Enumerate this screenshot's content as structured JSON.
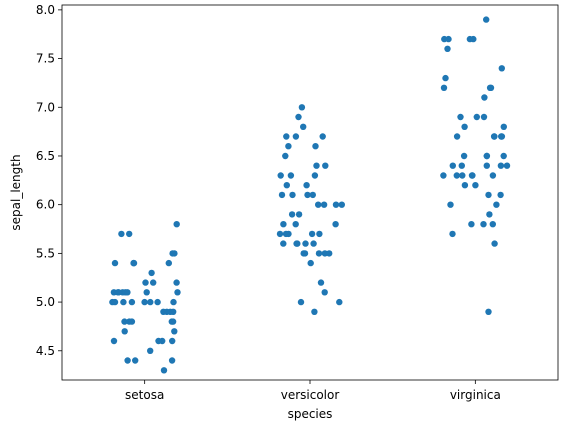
{
  "chart_data": {
    "type": "scatter",
    "subtype": "strip",
    "title": "",
    "xlabel": "species",
    "ylabel": "sepal_length",
    "categories": [
      "setosa",
      "versicolor",
      "virginica"
    ],
    "ylim": [
      4.2,
      8.05
    ],
    "yticks": [
      "4.5",
      "5.0",
      "5.5",
      "6.0",
      "6.5",
      "7.0",
      "7.5",
      "8.0"
    ],
    "grid": false,
    "legend": "none",
    "marker_color": "#1f77b4",
    "series": [
      {
        "category": "setosa",
        "values": [
          5.1,
          4.9,
          4.7,
          4.6,
          5.0,
          5.4,
          4.6,
          5.0,
          4.4,
          4.9,
          5.4,
          4.8,
          4.8,
          4.3,
          5.8,
          5.7,
          5.4,
          5.1,
          5.7,
          5.1,
          5.4,
          5.1,
          4.6,
          5.1,
          4.8,
          5.0,
          5.0,
          5.2,
          5.2,
          4.7,
          4.8,
          5.4,
          5.2,
          5.5,
          4.9,
          5.0,
          5.5,
          4.9,
          4.4,
          5.1,
          5.0,
          4.5,
          4.4,
          5.0,
          5.1,
          4.8,
          5.1,
          4.6,
          5.3,
          5.0
        ]
      },
      {
        "category": "versicolor",
        "values": [
          7.0,
          6.4,
          6.9,
          5.5,
          6.5,
          5.7,
          6.3,
          4.9,
          6.6,
          5.2,
          5.0,
          5.9,
          6.0,
          6.1,
          5.6,
          6.7,
          5.6,
          5.8,
          6.2,
          5.6,
          5.9,
          6.1,
          6.3,
          6.1,
          6.4,
          6.6,
          6.8,
          6.7,
          6.0,
          5.7,
          5.5,
          5.5,
          5.8,
          6.0,
          5.4,
          6.0,
          6.7,
          6.3,
          5.6,
          5.5,
          5.5,
          6.1,
          5.8,
          5.0,
          5.6,
          5.7,
          5.7,
          6.2,
          5.1,
          5.7
        ]
      },
      {
        "category": "virginica",
        "values": [
          6.3,
          5.8,
          7.1,
          6.3,
          6.5,
          7.6,
          4.9,
          7.3,
          6.7,
          7.2,
          6.5,
          6.4,
          6.8,
          5.7,
          5.8,
          6.4,
          6.5,
          7.7,
          7.7,
          6.0,
          6.9,
          5.6,
          7.7,
          6.3,
          6.7,
          7.2,
          6.2,
          6.1,
          6.4,
          7.2,
          7.4,
          7.9,
          6.4,
          6.3,
          6.1,
          7.7,
          6.3,
          6.4,
          6.0,
          6.9,
          6.7,
          6.9,
          5.8,
          6.8,
          6.7,
          6.7,
          6.3,
          6.5,
          6.2,
          5.9
        ]
      }
    ]
  }
}
